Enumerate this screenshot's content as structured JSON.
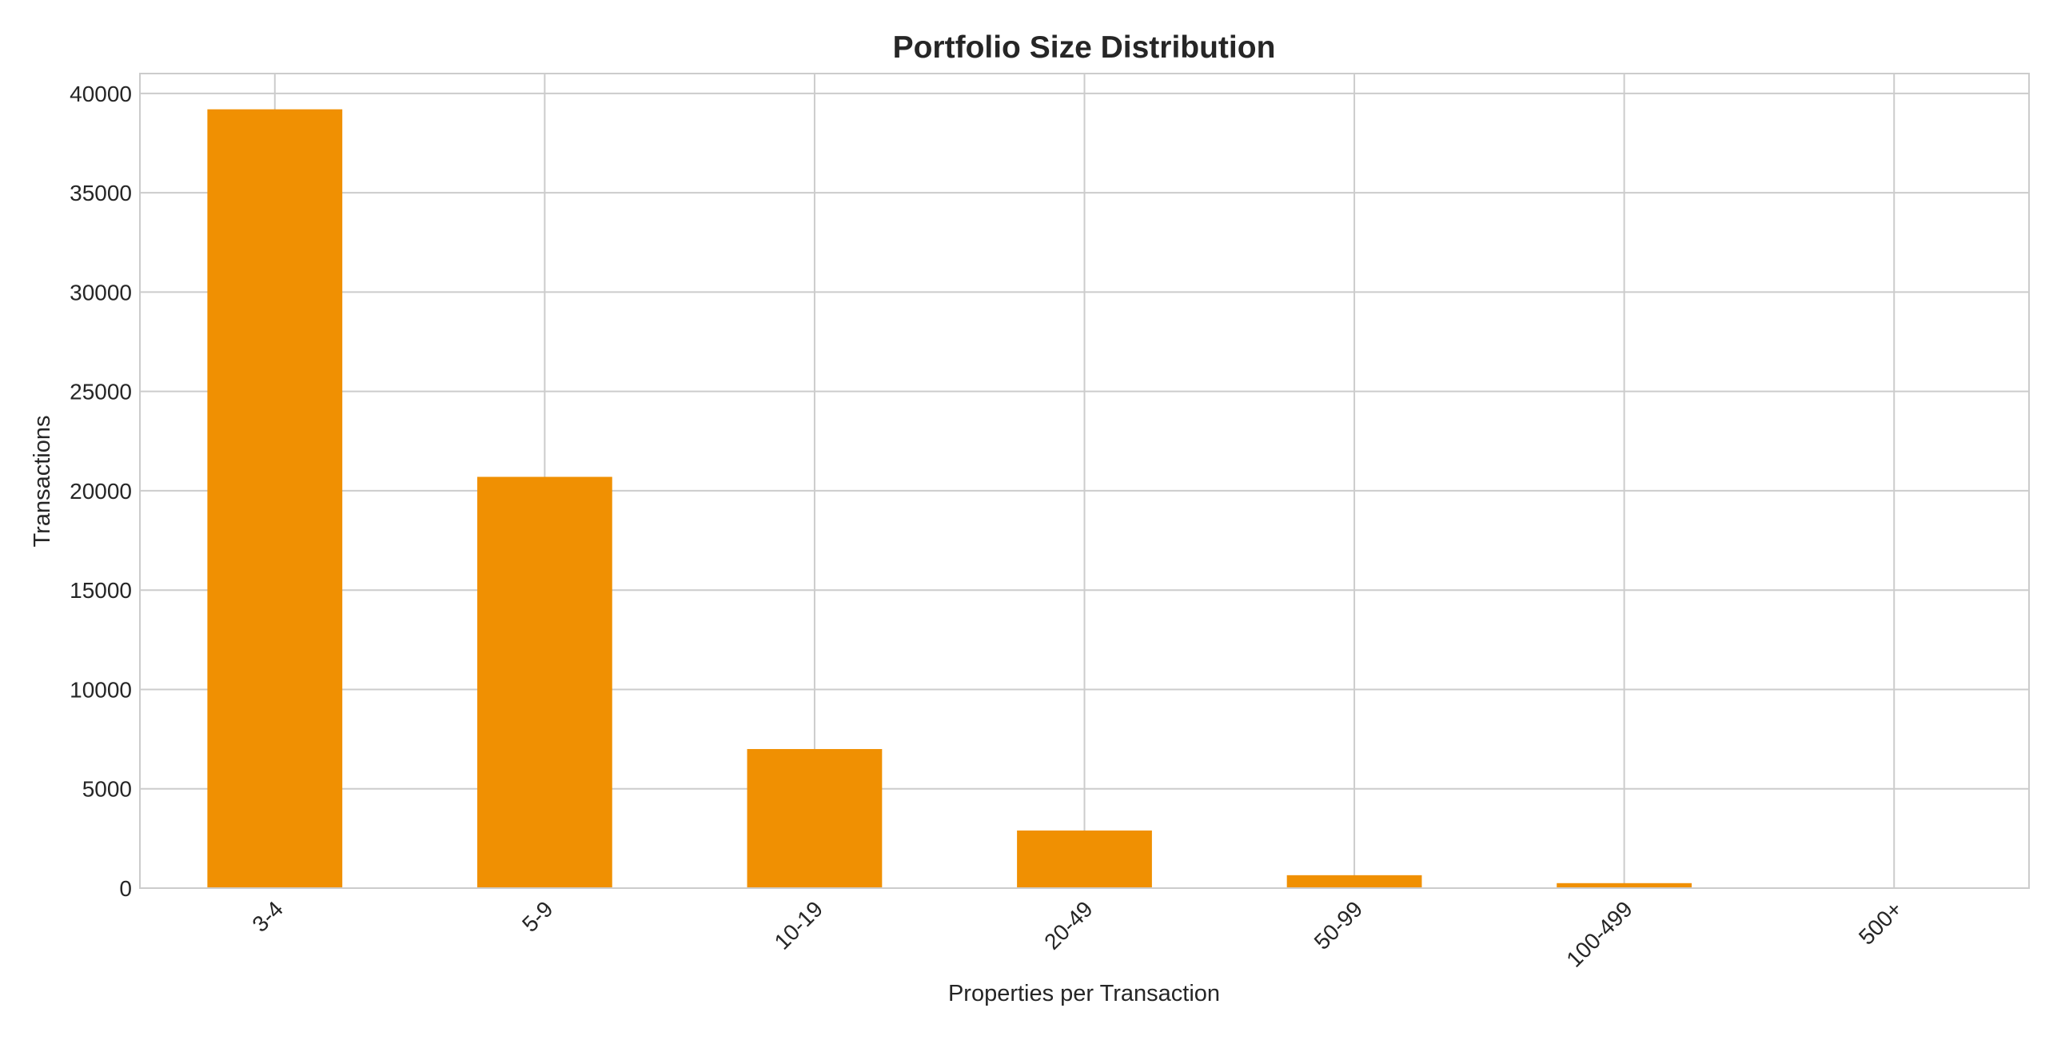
{
  "chart_data": {
    "type": "bar",
    "title": "Portfolio Size Distribution",
    "xlabel": "Properties per Transaction",
    "ylabel": "Transactions",
    "categories": [
      "3-4",
      "5-9",
      "10-19",
      "20-49",
      "50-99",
      "100-499",
      "500+"
    ],
    "values": [
      39200,
      20700,
      7000,
      2900,
      650,
      250,
      30
    ],
    "ylim": [
      0,
      41000
    ],
    "yticks": [
      0,
      5000,
      10000,
      15000,
      20000,
      25000,
      30000,
      35000,
      40000
    ],
    "ytick_labels": [
      "0",
      "5000",
      "10000",
      "15000",
      "20000",
      "25000",
      "30000",
      "35000",
      "40000"
    ],
    "grid": true,
    "legend": "none",
    "bar_color": "#f09002",
    "grid_color": "#cccccc",
    "xtick_rotation": -45
  }
}
